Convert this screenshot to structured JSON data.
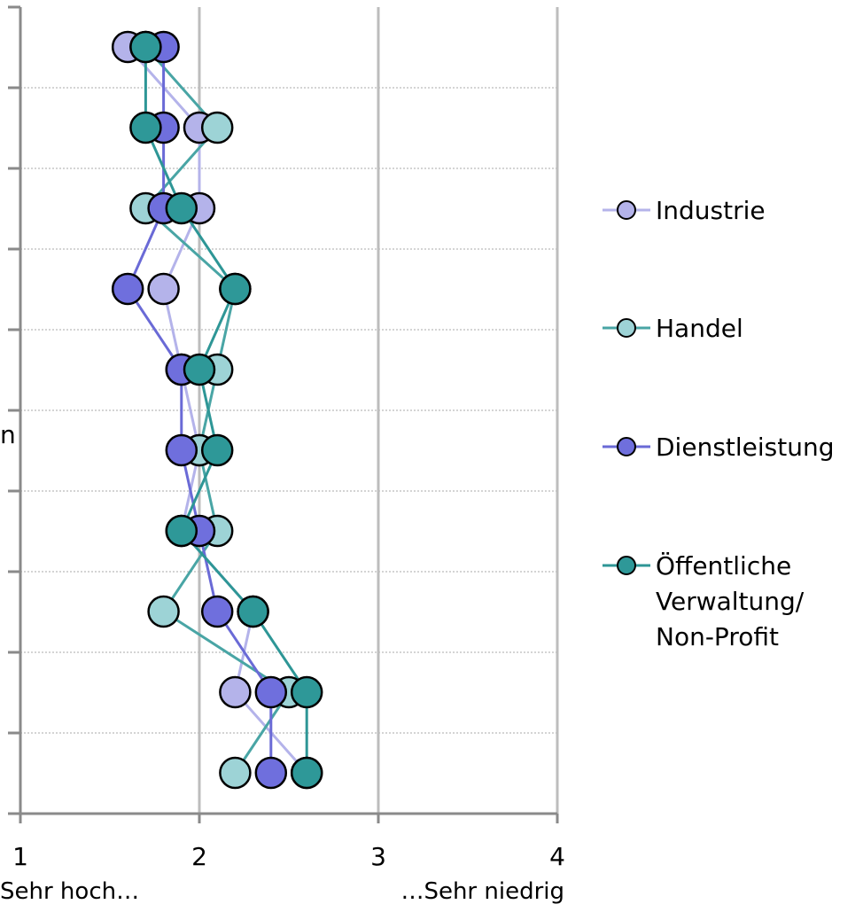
{
  "chart_data": {
    "type": "line",
    "orientation": "horizontal-values, vertical-categories",
    "xlim": [
      1,
      4
    ],
    "x_ticks": [
      "1",
      "2",
      "3",
      "4"
    ],
    "x_caption_left": "Sehr hoch…",
    "x_caption_right": "…Sehr niedrig",
    "category_count": 10,
    "truncated_label": "n",
    "grid": "vertical major lines at 2, 3, 4; dotted horizontal lines between categories",
    "legend_position": "right",
    "series": [
      {
        "name": "Industrie",
        "line_color": "#B4B3EA",
        "fill_color": "#B4B3EA",
        "values": [
          1.6,
          2.0,
          2.0,
          1.8,
          1.9,
          2.0,
          1.9,
          2.3,
          2.2,
          2.6
        ]
      },
      {
        "name": "Handel",
        "line_color": "#49A5A5",
        "fill_color": "#9DD3D6",
        "values": [
          1.7,
          2.1,
          1.7,
          2.2,
          2.1,
          2.0,
          2.1,
          1.8,
          2.5,
          2.2
        ]
      },
      {
        "name": "Dienstleistung",
        "line_color": "#6A6AD6",
        "fill_color": "#6F6FDD",
        "values": [
          1.8,
          1.8,
          1.8,
          1.6,
          1.9,
          1.9,
          2.0,
          2.1,
          2.4,
          2.4
        ]
      },
      {
        "name": "Öffentliche Verwaltung/ Non-Profit",
        "name_lines": [
          "Öffentliche",
          "Verwaltung/",
          "Non-Profit"
        ],
        "line_color": "#2E9696",
        "fill_color": "#2E9898",
        "values": [
          1.7,
          1.7,
          1.9,
          2.2,
          2.0,
          2.1,
          1.9,
          2.3,
          2.6,
          2.6
        ]
      }
    ]
  }
}
